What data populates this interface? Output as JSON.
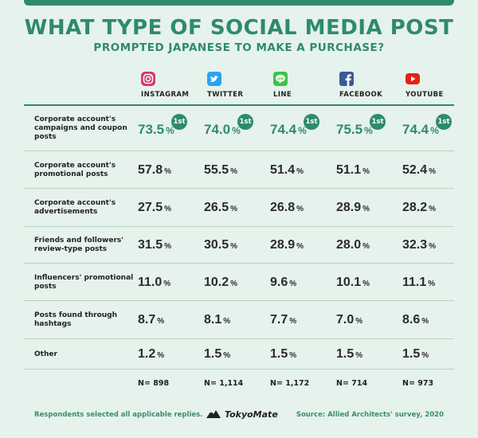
{
  "chart_data": {
    "type": "table",
    "title": "WHAT TYPE OF SOCIAL MEDIA POST",
    "subtitle": "PROMPTED JAPANESE TO MAKE A PURCHASE?",
    "platforms": [
      {
        "name": "INSTAGRAM",
        "icon": "instagram-icon",
        "color": "#d6356f",
        "n": "N= 898"
      },
      {
        "name": "TWITTER",
        "icon": "twitter-icon",
        "color": "#2aa3ef",
        "n": "N= 1,114"
      },
      {
        "name": "LINE",
        "icon": "line-icon",
        "color": "#3ec34b",
        "n": "N= 1,172"
      },
      {
        "name": "FACEBOOK",
        "icon": "facebook-icon",
        "color": "#3b5998",
        "n": "N= 714"
      },
      {
        "name": "YOUTUBE",
        "icon": "youtube-icon",
        "color": "#e62117",
        "n": "N= 973"
      }
    ],
    "rows": [
      {
        "label": "Corporate account's campaigns and coupon posts",
        "values": [
          73.5,
          74.0,
          74.4,
          75.5,
          74.4
        ],
        "first": true
      },
      {
        "label": "Corporate account's promotional posts",
        "values": [
          57.8,
          55.5,
          51.4,
          51.1,
          52.4
        ]
      },
      {
        "label": "Corporate account's advertisements",
        "values": [
          27.5,
          26.5,
          26.8,
          28.9,
          28.2
        ]
      },
      {
        "label": "Friends and followers' review-type posts",
        "values": [
          31.5,
          30.5,
          28.9,
          28.0,
          32.3
        ]
      },
      {
        "label": "Influencers' promotional posts",
        "values": [
          11.0,
          10.2,
          9.6,
          10.1,
          11.1
        ]
      },
      {
        "label": "Posts found through hashtags",
        "values": [
          8.7,
          8.1,
          7.7,
          7.0,
          8.6
        ]
      },
      {
        "label": "Other",
        "values": [
          1.2,
          1.5,
          1.5,
          1.5,
          1.5
        ]
      }
    ],
    "unit": "%",
    "first_badge": "1st",
    "accent_color": "#2e8b6b"
  },
  "footer": {
    "note": "Respondents selected all applicable replies.",
    "brand": "TokyoMate",
    "source": "Source: Allied Architects' survey, 2020"
  }
}
